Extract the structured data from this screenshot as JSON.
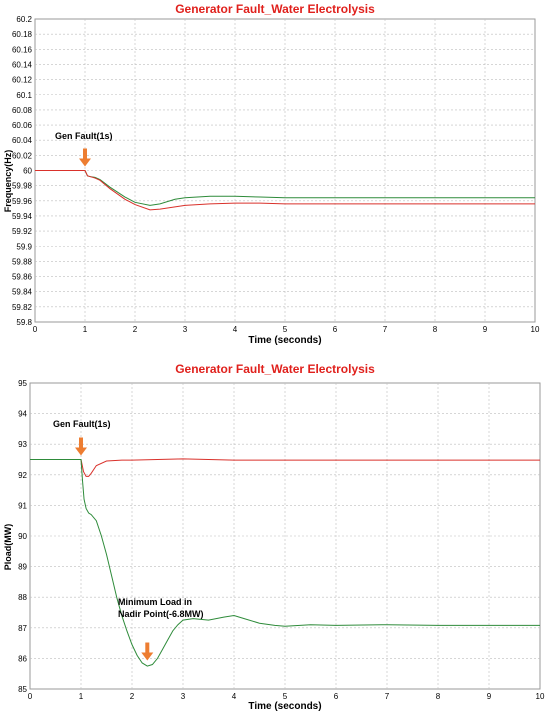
{
  "chart_data": [
    {
      "type": "line",
      "title": "Generator Fault_Water Electrolysis",
      "xlabel": "Time (seconds)",
      "ylabel": "Frequency(Hz)",
      "xlim": [
        0,
        10
      ],
      "ylim": [
        59.8,
        60.2
      ],
      "grid": true,
      "x_ticks": [
        "0",
        "1",
        "2",
        "3",
        "4",
        "5",
        "6",
        "7",
        "8",
        "9",
        "10"
      ],
      "y_ticks": [
        "60.2",
        "60.18",
        "60.16",
        "60.14",
        "60.12",
        "60.1",
        "60.08",
        "60.06",
        "60.04",
        "60.02",
        "60",
        "59.98",
        "59.96",
        "59.94",
        "59.92",
        "59.9",
        "59.88",
        "59.86",
        "59.84",
        "59.82",
        "59.8"
      ],
      "annotations": [
        {
          "text": "Gen Fault(1s)",
          "x": 1.0,
          "y": 60.0
        }
      ],
      "series": [
        {
          "color": "#2e8b3a",
          "x": [
            0,
            1.0,
            1.05,
            1.1,
            1.2,
            1.3,
            1.5,
            1.8,
            2.0,
            2.3,
            2.5,
            2.8,
            3.0,
            3.5,
            4.0,
            4.5,
            5,
            6,
            7,
            8,
            9,
            10
          ],
          "y": [
            60.0,
            60.0,
            59.993,
            59.992,
            59.991,
            59.988,
            59.978,
            59.965,
            59.958,
            59.954,
            59.956,
            59.962,
            59.964,
            59.966,
            59.966,
            59.965,
            59.964,
            59.964,
            59.964,
            59.964,
            59.964,
            59.964
          ]
        },
        {
          "color": "#d9312b",
          "x": [
            0,
            1.0,
            1.05,
            1.1,
            1.2,
            1.3,
            1.5,
            1.8,
            2.0,
            2.3,
            2.5,
            2.8,
            3.0,
            3.5,
            4.0,
            4.5,
            5,
            6,
            7,
            8,
            9,
            10
          ],
          "y": [
            60.0,
            60.0,
            59.993,
            59.992,
            59.99,
            59.987,
            59.976,
            59.962,
            59.955,
            59.948,
            59.949,
            59.952,
            59.954,
            59.956,
            59.957,
            59.957,
            59.956,
            59.956,
            59.956,
            59.956,
            59.956,
            59.956
          ]
        }
      ]
    },
    {
      "type": "line",
      "title": "Generator Fault_Water Electrolysis",
      "xlabel": "Time (seconds)",
      "ylabel": "Pload(MW)",
      "xlim": [
        0,
        10
      ],
      "ylim": [
        85,
        95
      ],
      "grid": true,
      "x_ticks": [
        "0",
        "1",
        "2",
        "3",
        "4",
        "5",
        "6",
        "7",
        "8",
        "9",
        "10"
      ],
      "y_ticks": [
        "95",
        "94",
        "93",
        "92",
        "91",
        "90",
        "89",
        "88",
        "87",
        "86",
        "85"
      ],
      "annotations": [
        {
          "text": "Gen Fault(1s)",
          "x": 1.0,
          "y": 92.5
        },
        {
          "text": "Minimum Load in\nNadir Point(-6.8MW)",
          "x": 2.3,
          "y": 85.7
        }
      ],
      "series": [
        {
          "color": "#d9312b",
          "x": [
            0,
            1.0,
            1.05,
            1.1,
            1.15,
            1.2,
            1.3,
            1.5,
            1.8,
            2.0,
            3.0,
            4.0,
            5,
            6,
            7,
            8,
            9,
            10
          ],
          "y": [
            92.5,
            92.5,
            92.1,
            91.95,
            91.95,
            92.05,
            92.3,
            92.45,
            92.48,
            92.48,
            92.52,
            92.48,
            92.48,
            92.48,
            92.48,
            92.48,
            92.48,
            92.48
          ]
        },
        {
          "color": "#2e8b3a",
          "x": [
            0,
            1.0,
            1.03,
            1.06,
            1.1,
            1.15,
            1.2,
            1.3,
            1.4,
            1.5,
            1.6,
            1.7,
            1.8,
            1.9,
            2.0,
            2.1,
            2.2,
            2.3,
            2.4,
            2.5,
            2.6,
            2.7,
            2.8,
            2.9,
            3.0,
            3.2,
            3.5,
            3.8,
            4.0,
            4.2,
            4.5,
            4.8,
            5,
            5.5,
            6,
            7,
            8,
            9,
            10
          ],
          "y": [
            92.5,
            92.5,
            91.8,
            91.2,
            90.9,
            90.75,
            90.7,
            90.5,
            90.0,
            89.4,
            88.7,
            88.0,
            87.4,
            86.9,
            86.45,
            86.1,
            85.85,
            85.75,
            85.8,
            86.0,
            86.3,
            86.6,
            86.9,
            87.1,
            87.25,
            87.3,
            87.25,
            87.35,
            87.4,
            87.3,
            87.15,
            87.08,
            87.05,
            87.1,
            87.08,
            87.1,
            87.08,
            87.08,
            87.08
          ]
        }
      ]
    }
  ]
}
